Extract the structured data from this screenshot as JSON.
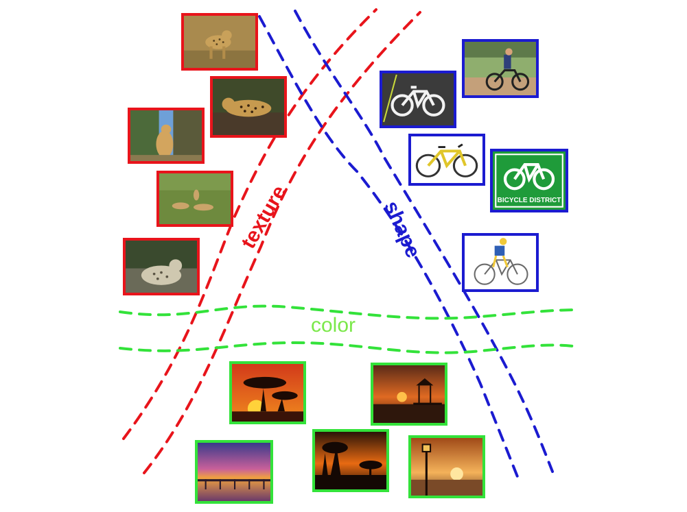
{
  "diagram": {
    "labels": {
      "texture": "texture",
      "shape": "shape",
      "color": "color"
    },
    "colors": {
      "texture": "#e8141b",
      "shape": "#1b1bd0",
      "color": "#33e23a"
    },
    "groups": {
      "texture": [
        "cheetah-standing",
        "leopard-on-rock",
        "cheetah-sitting",
        "cheetahs-in-grass",
        "snow-leopard"
      ],
      "shape": [
        "bicycle-sign-icon",
        "cyclist-riding",
        "yellow-bicycle",
        "bicycle-district-sign",
        "cyclist-illustration"
      ],
      "color": [
        "acacia-sunset",
        "gazebo-sunset",
        "pier-sunset",
        "tree-silhouette-sunset",
        "lamp-post-sunset"
      ]
    },
    "sign_text": "BICYCLE DISTRICT"
  }
}
